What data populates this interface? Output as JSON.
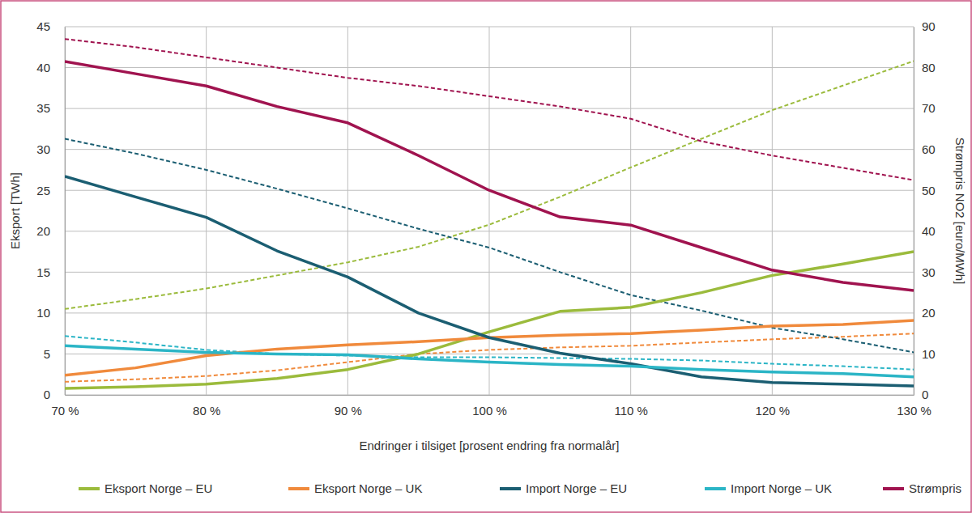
{
  "chart_data": {
    "type": "line",
    "x_label": "Endringer i tilsiget [prosent endring fra normalår]",
    "y_label": "Eksport [TWh]",
    "y2_label": "Strømpris NO2 [euro/MWh]",
    "x": [
      70,
      75,
      80,
      85,
      90,
      95,
      100,
      105,
      110,
      115,
      120,
      125,
      130
    ],
    "xlim": [
      70,
      130
    ],
    "xticks": [
      {
        "value": 70,
        "label": "70 %"
      },
      {
        "value": 80,
        "label": "80 %"
      },
      {
        "value": 90,
        "label": "90 %"
      },
      {
        "value": 100,
        "label": "100 %"
      },
      {
        "value": 110,
        "label": "110 %"
      },
      {
        "value": 120,
        "label": "120 %"
      },
      {
        "value": 130,
        "label": "130 %"
      }
    ],
    "ylim": [
      0,
      45
    ],
    "yticks": [
      0,
      5,
      10,
      15,
      20,
      25,
      30,
      35,
      40,
      45
    ],
    "y2lim": [
      0,
      90
    ],
    "y2ticks": [
      0,
      10,
      20,
      30,
      40,
      50,
      60,
      70,
      80,
      90
    ],
    "grid": true,
    "legend": "bottom",
    "series": [
      {
        "name": "Eksport Norge – EU",
        "color": "#9bbb3c",
        "line_style": "solid",
        "values": [
          0.8,
          1.0,
          1.3,
          2.0,
          3.1,
          5.0,
          7.7,
          10.2,
          10.7,
          12.5,
          14.6,
          16.0,
          17.5
        ]
      },
      {
        "name": "Eksport Norge – UK",
        "color": "#f08a3c",
        "line_style": "solid",
        "values": [
          2.4,
          3.3,
          4.8,
          5.6,
          6.1,
          6.5,
          7.0,
          7.3,
          7.5,
          7.9,
          8.4,
          8.6,
          9.1
        ]
      },
      {
        "name": "Import Norge – EU",
        "color": "#1b5e72",
        "line_style": "solid",
        "values": [
          26.7,
          24.2,
          21.7,
          17.6,
          14.4,
          10.0,
          7.0,
          5.1,
          3.8,
          2.2,
          1.5,
          1.3,
          1.1
        ]
      },
      {
        "name": "Import Norge – UK",
        "color": "#2bb5c6",
        "line_style": "solid",
        "values": [
          6.0,
          5.6,
          5.2,
          5.0,
          4.9,
          4.4,
          4.0,
          3.7,
          3.5,
          3.1,
          2.8,
          2.6,
          2.2
        ]
      },
      {
        "name": "Strømpris",
        "color": "#a0134f",
        "line_style": "solid",
        "axis": "y2",
        "values": [
          81.5,
          78.5,
          75.5,
          70.5,
          66.5,
          58.5,
          50,
          43.5,
          41.5,
          36,
          30.5,
          27.5,
          25.5
        ]
      },
      {
        "color": "#9bbb3c",
        "line_style": "dashed",
        "values": [
          10.5,
          11.7,
          13.0,
          14.6,
          16.2,
          18.1,
          20.8,
          24.2,
          27.8,
          31.3,
          34.8,
          37.8,
          40.8
        ]
      },
      {
        "color": "#f08a3c",
        "line_style": "dashed",
        "values": [
          1.6,
          1.9,
          2.3,
          3.0,
          4.0,
          5.0,
          5.5,
          5.8,
          6.0,
          6.4,
          6.8,
          7.1,
          7.5
        ]
      },
      {
        "color": "#1b5e72",
        "line_style": "dashed",
        "values": [
          31.3,
          29.5,
          27.5,
          25.2,
          22.8,
          20.3,
          18.0,
          15.0,
          12.2,
          10.3,
          8.2,
          6.8,
          5.2
        ]
      },
      {
        "color": "#2bb5c6",
        "line_style": "dashed",
        "values": [
          7.2,
          6.4,
          5.5,
          5.0,
          4.8,
          4.6,
          4.6,
          4.5,
          4.4,
          4.2,
          3.8,
          3.5,
          3.1
        ]
      },
      {
        "color": "#a0134f",
        "line_style": "dashed",
        "axis": "y2",
        "values": [
          87,
          85,
          82.5,
          80,
          77.5,
          75.5,
          73,
          70.5,
          67.5,
          62,
          58.5,
          55.5,
          52.5
        ]
      }
    ]
  }
}
